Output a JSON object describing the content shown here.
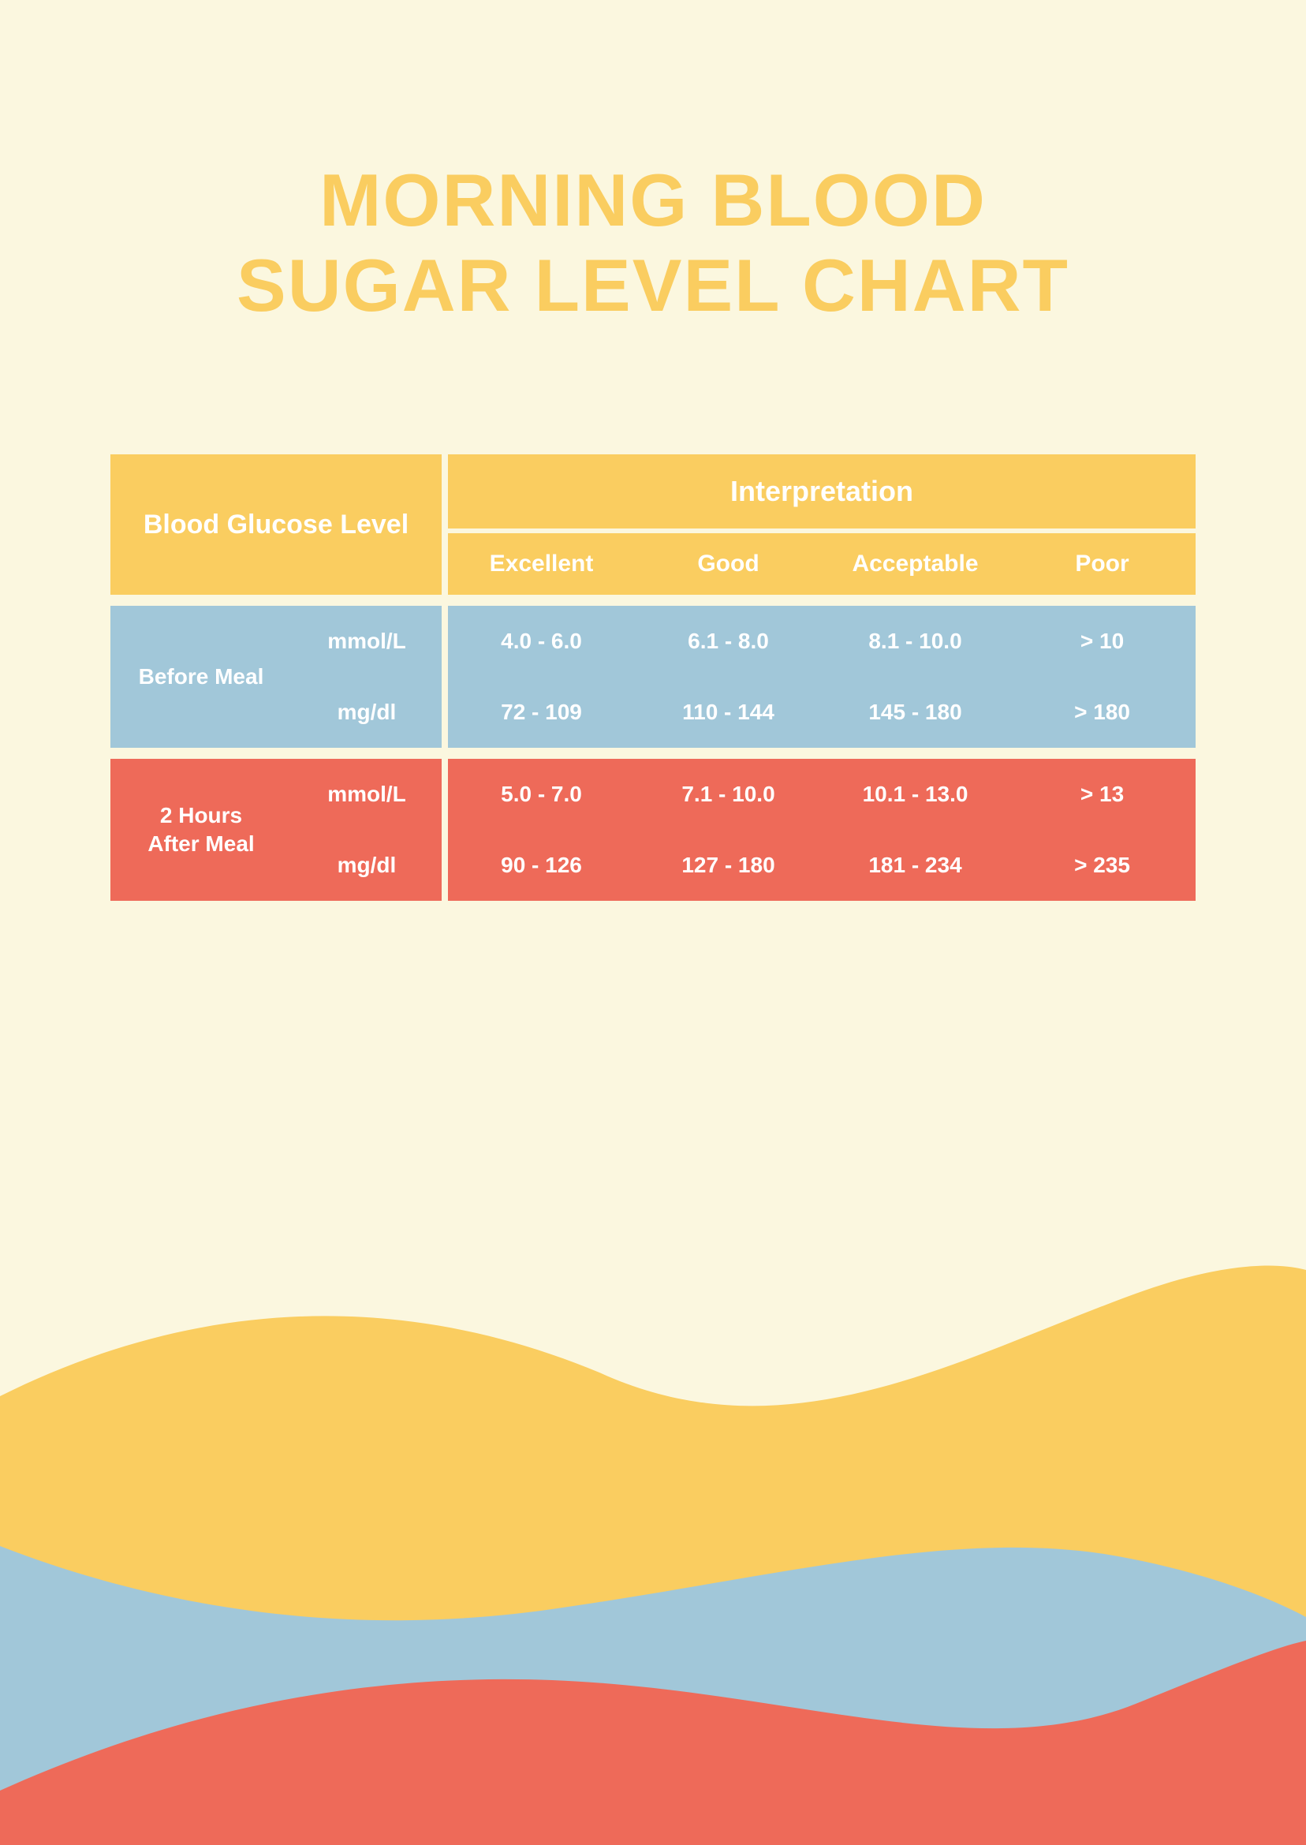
{
  "colors": {
    "background": "#fbf7df",
    "yellow": "#facd60",
    "blue_row": "#a1c7d9",
    "coral": "#ee6a59",
    "wave_yellow": "#facd60",
    "wave_blue": "#a1c7d9",
    "wave_coral": "#ee6a59",
    "title_color": "#facd60",
    "header_text": "#ffffff",
    "row_text": "#ffffff"
  },
  "title_line1": "MORNING BLOOD",
  "title_line2": "SUGAR LEVEL CHART",
  "chart": {
    "header_left_label": "Blood Glucose Level",
    "interpretation_label": "Interpretation",
    "columns": [
      "Excellent",
      "Good",
      "Acceptable",
      "Poor"
    ],
    "groups": [
      {
        "label": "Before Meal",
        "rows": [
          {
            "unit": "mmol/L",
            "values": [
              "4.0 - 6.0",
              "6.1 - 8.0",
              "8.1 - 10.0",
              "> 10"
            ]
          },
          {
            "unit": "mg/dl",
            "values": [
              "72 - 109",
              "110 - 144",
              "145 - 180",
              "> 180"
            ]
          }
        ]
      },
      {
        "label": "2 Hours\nAfter Meal",
        "rows": [
          {
            "unit": "mmol/L",
            "values": [
              "5.0 - 7.0",
              "7.1 - 10.0",
              "10.1 - 13.0",
              "> 13"
            ]
          },
          {
            "unit": "mg/dl",
            "values": [
              "90 - 126",
              "127 - 180",
              "181 - 234",
              "> 235"
            ]
          }
        ]
      }
    ],
    "group_colors": [
      "#a1c7d9",
      "#ee6a59"
    ]
  }
}
